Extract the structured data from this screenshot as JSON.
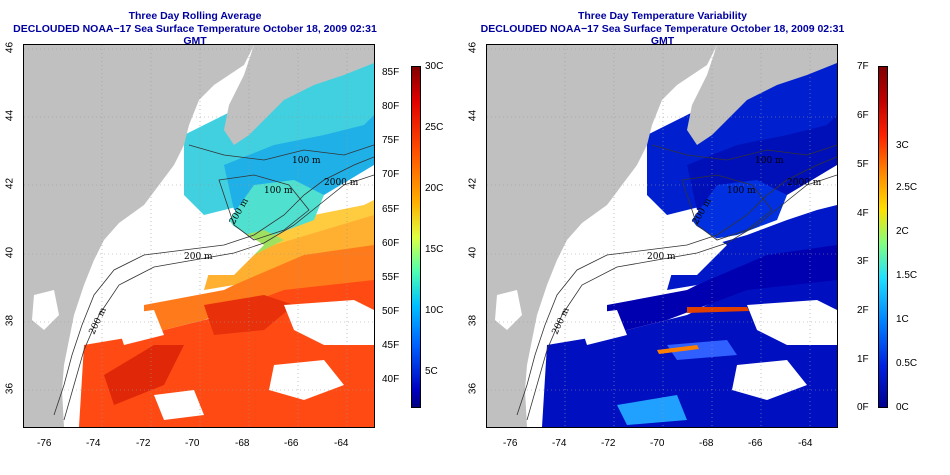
{
  "left_panel": {
    "title_line1": "Three Day Rolling Average",
    "title_line2": "DECLOUDED NOAA−17 Sea Surface Temperature October 18, 2009 02:31 GMT",
    "colorbar_f": [
      "85F",
      "80F",
      "75F",
      "70F",
      "65F",
      "60F",
      "55F",
      "50F",
      "45F",
      "40F"
    ],
    "colorbar_c": [
      "30C",
      "25C",
      "20C",
      "15C",
      "10C",
      "5C"
    ],
    "isobaths": [
      "100 m",
      "2000 m",
      "100 m",
      "200 m",
      "200 m",
      "200 m"
    ]
  },
  "right_panel": {
    "title_line1": "Three Day Temperature Variability",
    "title_line2": "DECLOUDED NOAA−17 Sea Surface Temperature October 18, 2009 02:31 GMT",
    "colorbar_f": [
      "7F",
      "6F",
      "5F",
      "4F",
      "3F",
      "2F",
      "1F",
      "0F"
    ],
    "colorbar_c": [
      "3C",
      "2.5C",
      "2C",
      "1.5C",
      "1C",
      "0.5C",
      "0C"
    ],
    "isobaths": [
      "100 m",
      "2000 m",
      "100 m",
      "200 m",
      "200 m",
      "200 m"
    ]
  },
  "lon_ticks": [
    "-76",
    "-74",
    "-72",
    "-70",
    "-68",
    "-66",
    "-64"
  ],
  "lat_ticks": [
    "46",
    "44",
    "42",
    "40",
    "38",
    "36"
  ],
  "colors": {
    "title": "#0000a0",
    "land": "#c0c0c0",
    "cloud": "#ffffff"
  }
}
